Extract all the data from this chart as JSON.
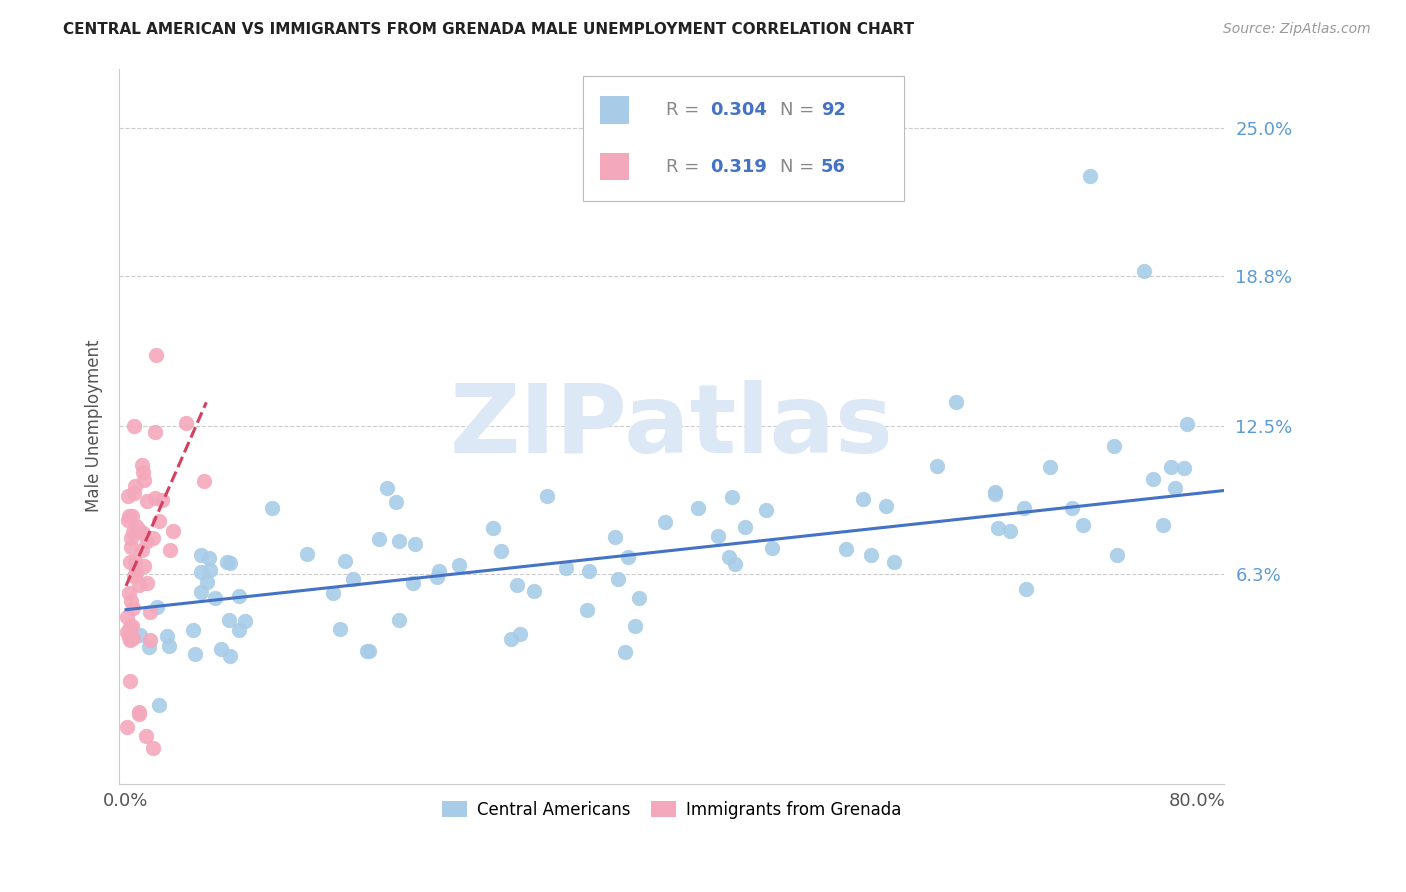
{
  "title": "CENTRAL AMERICAN VS IMMIGRANTS FROM GRENADA MALE UNEMPLOYMENT CORRELATION CHART",
  "source": "Source: ZipAtlas.com",
  "ylabel": "Male Unemployment",
  "ytick_vals": [
    0.063,
    0.125,
    0.188,
    0.25
  ],
  "ytick_labels": [
    "6.3%",
    "12.5%",
    "18.8%",
    "25.0%"
  ],
  "xlim": [
    -0.005,
    0.82
  ],
  "ylim": [
    -0.025,
    0.275
  ],
  "blue_R": 0.304,
  "blue_N": 92,
  "pink_R": 0.319,
  "pink_N": 56,
  "blue_color": "#a8cce8",
  "pink_color": "#f4a8bc",
  "trend_blue_color": "#4472c4",
  "trend_pink_color": "#d44060",
  "watermark": "ZIPatlas",
  "watermark_color": "#dce8f5",
  "legend_blue_label": "Central Americans",
  "legend_pink_label": "Immigrants from Grenada",
  "blue_trend_x0": 0.0,
  "blue_trend_x1": 0.82,
  "blue_trend_y0": 0.048,
  "blue_trend_y1": 0.098,
  "pink_trend_x0": 0.0,
  "pink_trend_x1": 0.06,
  "pink_trend_y0": 0.058,
  "pink_trend_y1": 0.135
}
